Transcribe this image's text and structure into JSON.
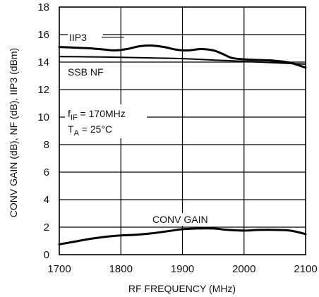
{
  "chart_data": {
    "type": "line",
    "title": "",
    "xlabel": "RF FREQUENCY (MHz)",
    "ylabel": "CONV GAIN (dB), NF (dB), IIP3 (dBm)",
    "xlim": [
      1700,
      2100
    ],
    "ylim": [
      0,
      18
    ],
    "x_ticks": [
      "1700",
      "1800",
      "1900",
      "2000",
      "2100"
    ],
    "y_ticks": [
      "0",
      "2",
      "4",
      "6",
      "8",
      "10",
      "12",
      "14",
      "16",
      "18"
    ],
    "grid": true,
    "series": [
      {
        "name": "IIP3",
        "x": [
          1700,
          1725,
          1750,
          1775,
          1790,
          1810,
          1830,
          1850,
          1870,
          1890,
          1910,
          1930,
          1950,
          1965,
          1980,
          2000,
          2025,
          2050,
          2075,
          2100
        ],
        "y": [
          15.1,
          15.05,
          15.0,
          14.9,
          14.85,
          14.95,
          15.15,
          15.2,
          15.1,
          14.9,
          14.85,
          14.95,
          14.85,
          14.6,
          14.3,
          14.2,
          14.15,
          14.1,
          13.95,
          13.6
        ]
      },
      {
        "name": "SSB NF",
        "x": [
          1700,
          1750,
          1800,
          1850,
          1900,
          1950,
          2000,
          2050,
          2100
        ],
        "y": [
          14.4,
          14.38,
          14.35,
          14.3,
          14.25,
          14.15,
          14.05,
          13.95,
          13.85
        ]
      },
      {
        "name": "CONV GAIN",
        "x": [
          1700,
          1725,
          1750,
          1775,
          1800,
          1825,
          1850,
          1875,
          1900,
          1925,
          1950,
          1975,
          2000,
          2025,
          2050,
          2075,
          2100
        ],
        "y": [
          0.75,
          0.95,
          1.15,
          1.3,
          1.4,
          1.45,
          1.55,
          1.7,
          1.85,
          1.9,
          1.9,
          1.8,
          1.75,
          1.8,
          1.8,
          1.75,
          1.5
        ]
      }
    ],
    "annotations": {
      "fif_main": "f",
      "fif_sub": "IF",
      "fif_rest": " = 170MHz",
      "ta_main": "T",
      "ta_sub": "A",
      "ta_rest": " = 25°C"
    }
  }
}
